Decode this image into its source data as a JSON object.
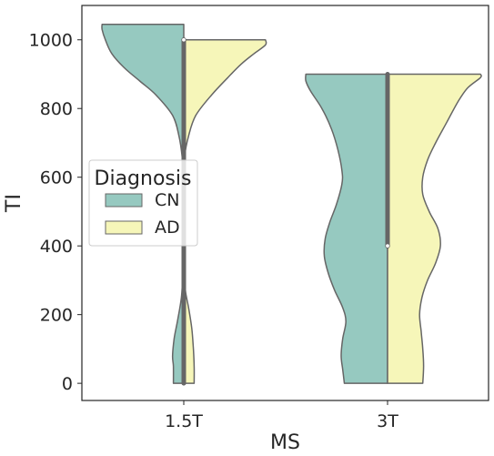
{
  "chart_data": {
    "type": "violin",
    "split": true,
    "xlabel": "MS",
    "ylabel": "TI",
    "categories": [
      "1.5T",
      "3T"
    ],
    "ylim": [
      -50,
      1100
    ],
    "yticks": [
      0,
      200,
      400,
      600,
      800,
      1000
    ],
    "grid": false,
    "legend": {
      "title": "Diagnosis",
      "placement": "center-left",
      "entries": [
        "CN",
        "AD"
      ]
    },
    "colors": {
      "CN": "#96c9c0",
      "AD": "#f6f6b9",
      "outline": "#666666",
      "axes": "#262626"
    },
    "series": [
      {
        "name": "CN",
        "side": "left",
        "violins": [
          {
            "category": "1.5T",
            "ymin": 0,
            "ymax": 1045,
            "profile": [
              [
                0,
                0.13
              ],
              [
                50,
                0.13
              ],
              [
                80,
                0.14
              ],
              [
                130,
                0.12
              ],
              [
                180,
                0.08
              ],
              [
                250,
                0.03
              ],
              [
                330,
                0.01
              ],
              [
                400,
                0.005
              ],
              [
                500,
                0.005
              ],
              [
                600,
                0.005
              ],
              [
                660,
                0.02
              ],
              [
                720,
                0.06
              ],
              [
                780,
                0.14
              ],
              [
                840,
                0.35
              ],
              [
                880,
                0.55
              ],
              [
                920,
                0.75
              ],
              [
                960,
                0.9
              ],
              [
                1000,
                0.98
              ],
              [
                1030,
                1.02
              ],
              [
                1045,
                1.02
              ]
            ]
          },
          {
            "category": "3T",
            "ymin": 0,
            "ymax": 900,
            "profile": [
              [
                0,
                0.54
              ],
              [
                40,
                0.56
              ],
              [
                80,
                0.58
              ],
              [
                130,
                0.56
              ],
              [
                180,
                0.52
              ],
              [
                220,
                0.56
              ],
              [
                270,
                0.66
              ],
              [
                320,
                0.74
              ],
              [
                370,
                0.79
              ],
              [
                420,
                0.78
              ],
              [
                470,
                0.72
              ],
              [
                520,
                0.64
              ],
              [
                580,
                0.57
              ],
              [
                620,
                0.57
              ],
              [
                680,
                0.62
              ],
              [
                740,
                0.7
              ],
              [
                800,
                0.82
              ],
              [
                850,
                0.96
              ],
              [
                880,
                1.02
              ],
              [
                900,
                1.02
              ]
            ]
          }
        ]
      },
      {
        "name": "AD",
        "side": "right",
        "violins": [
          {
            "category": "1.5T",
            "ymin": 0,
            "ymax": 1000,
            "profile": [
              [
                0,
                0.13
              ],
              [
                50,
                0.13
              ],
              [
                100,
                0.12
              ],
              [
                160,
                0.1
              ],
              [
                220,
                0.06
              ],
              [
                270,
                0.02
              ],
              [
                330,
                0.005
              ],
              [
                450,
                0.005
              ],
              [
                600,
                0.005
              ],
              [
                660,
                0.01
              ],
              [
                720,
                0.06
              ],
              [
                780,
                0.15
              ],
              [
                840,
                0.35
              ],
              [
                890,
                0.55
              ],
              [
                930,
                0.72
              ],
              [
                960,
                0.88
              ],
              [
                985,
                1.02
              ],
              [
                1000,
                1.02
              ]
            ]
          },
          {
            "category": "3T",
            "ymin": 0,
            "ymax": 900,
            "profile": [
              [
                0,
                0.44
              ],
              [
                50,
                0.45
              ],
              [
                100,
                0.44
              ],
              [
                150,
                0.42
              ],
              [
                200,
                0.4
              ],
              [
                250,
                0.43
              ],
              [
                300,
                0.5
              ],
              [
                350,
                0.6
              ],
              [
                400,
                0.66
              ],
              [
                450,
                0.63
              ],
              [
                500,
                0.52
              ],
              [
                550,
                0.44
              ],
              [
                600,
                0.44
              ],
              [
                650,
                0.5
              ],
              [
                700,
                0.6
              ],
              [
                760,
                0.74
              ],
              [
                820,
                0.88
              ],
              [
                860,
                1.0
              ],
              [
                890,
                1.16
              ],
              [
                900,
                1.16
              ]
            ]
          }
        ]
      }
    ],
    "quartile_markers": [
      {
        "category": "1.5T",
        "q1": 0,
        "median": 1000,
        "q3": 1000
      },
      {
        "category": "3T",
        "q1": 400,
        "median": 400,
        "q3": 900
      }
    ]
  }
}
